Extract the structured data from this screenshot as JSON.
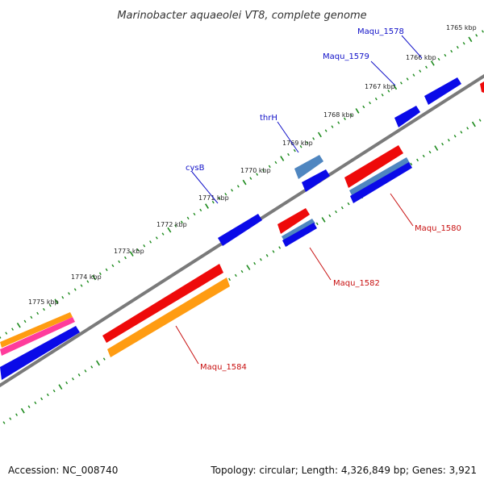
{
  "title": "Marinobacter aquaeolei VT8, complete genome",
  "footer": {
    "accession": "Accession: NC_008740",
    "summary": "Topology: circular; Length: 4,326,849 bp; Genes: 3,921"
  },
  "colors": {
    "backbone": "#7a7a7a",
    "ruler": "#1c8a1c",
    "blue": "#0a0ae8",
    "steel": "#4f86c0",
    "red": "#ee0a0a",
    "orange": "#ff9c12",
    "pink": "#ff3c9c",
    "label_blue": "#1010c8",
    "label_red": "#c81010"
  },
  "ruler_ticks": [
    "1765 kbp",
    "1766 kbp",
    "1767 kbp",
    "1768 kbp",
    "1769 kbp",
    "1770 kbp",
    "1771 kbp",
    "1772 kbp",
    "1773 kbp",
    "1774 kbp",
    "1775 kbp"
  ],
  "features": [
    {
      "id": "f1",
      "color": "blue",
      "strand": "outer"
    },
    {
      "id": "f2",
      "color": "blue",
      "strand": "outer"
    },
    {
      "id": "f3",
      "color": "steel",
      "strand": "outer"
    },
    {
      "id": "f4",
      "color": "blue",
      "strand": "outer"
    },
    {
      "id": "f5",
      "color": "blue",
      "strand": "outer"
    },
    {
      "id": "f6",
      "color": "orange",
      "strand": "outer"
    },
    {
      "id": "f7",
      "color": "pink",
      "strand": "outer"
    },
    {
      "id": "f8",
      "color": "blue",
      "strand": "outer"
    },
    {
      "id": "f9",
      "color": "red",
      "strand": "inner"
    },
    {
      "id": "f10",
      "color": "red",
      "strand": "inner"
    },
    {
      "id": "f11",
      "color": "steel",
      "strand": "inner"
    },
    {
      "id": "f12",
      "color": "blue",
      "strand": "inner"
    },
    {
      "id": "f13",
      "color": "red",
      "strand": "inner"
    },
    {
      "id": "f14",
      "color": "steel",
      "strand": "inner"
    },
    {
      "id": "f15",
      "color": "blue",
      "strand": "inner"
    },
    {
      "id": "f16",
      "color": "red",
      "strand": "inner"
    },
    {
      "id": "f17",
      "color": "orange",
      "strand": "inner"
    }
  ],
  "gene_labels": [
    {
      "text": "Maqu_1578",
      "color": "label_blue"
    },
    {
      "text": "Maqu_1579",
      "color": "label_blue"
    },
    {
      "text": "thrH",
      "color": "label_blue"
    },
    {
      "text": "cysB",
      "color": "label_blue"
    },
    {
      "text": "Maqu_1580",
      "color": "label_red"
    },
    {
      "text": "Maqu_1582",
      "color": "label_red"
    },
    {
      "text": "Maqu_1584",
      "color": "label_red"
    }
  ]
}
